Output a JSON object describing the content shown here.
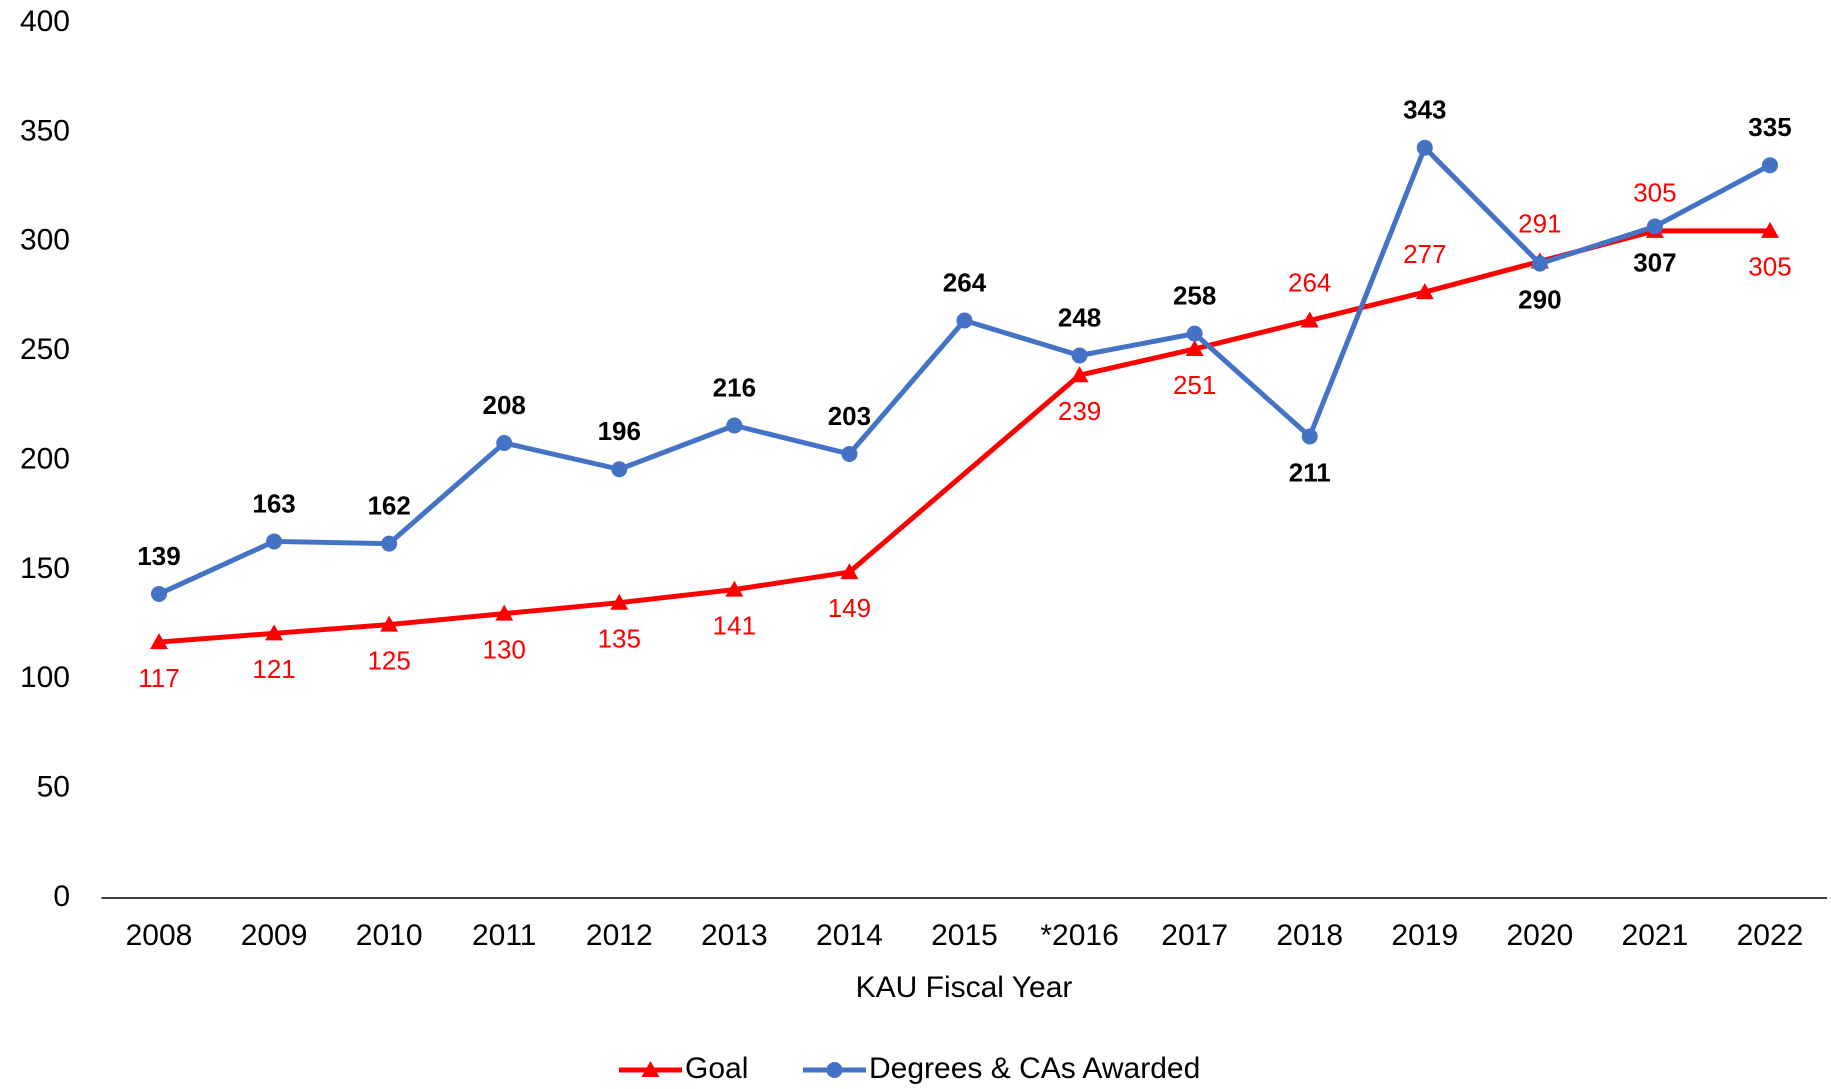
{
  "chart_data": {
    "type": "line",
    "x_label": "KAU Fiscal Year",
    "categories": [
      "2008",
      "2009",
      "2010",
      "2011",
      "2012",
      "2013",
      "2014",
      "2015",
      "*2016",
      "2017",
      "2018",
      "2019",
      "2020",
      "2021",
      "2022"
    ],
    "series": [
      {
        "name": "Goal",
        "color": "#ff0000",
        "marker": "triangle",
        "values": [
          117,
          121,
          125,
          130,
          135,
          141,
          149,
          null,
          239,
          251,
          264,
          277,
          291,
          305,
          305
        ]
      },
      {
        "name": "Degrees & CAs Awarded",
        "color": "#4472c4",
        "marker": "circle",
        "values": [
          139,
          163,
          162,
          208,
          196,
          216,
          203,
          264,
          248,
          258,
          211,
          343,
          290,
          307,
          335
        ]
      }
    ],
    "connect_gaps": true,
    "ylim": [
      0,
      400
    ],
    "yticks": [
      0,
      50,
      100,
      150,
      200,
      250,
      300,
      350,
      400
    ],
    "legend": "bottom"
  }
}
